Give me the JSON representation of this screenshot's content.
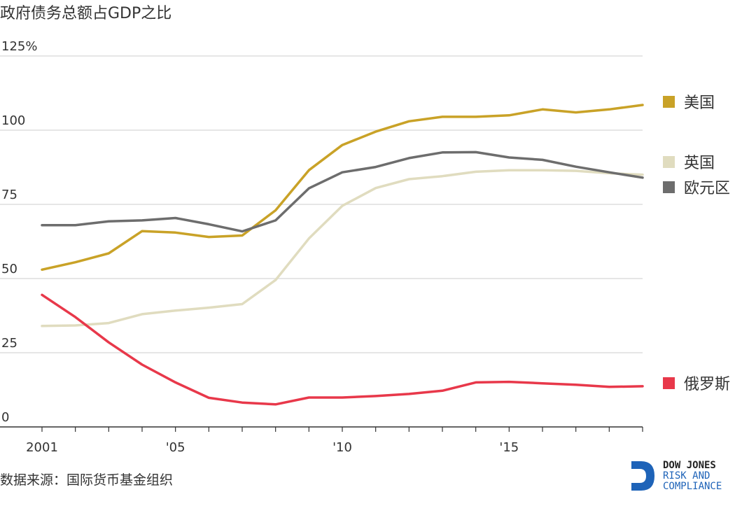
{
  "chart_data": {
    "type": "line",
    "title": "政府债务总额占GDP之比",
    "ylim": [
      0,
      125
    ],
    "y_ticks": [
      {
        "value": 125,
        "label": "125%"
      },
      {
        "value": 100,
        "label": "100"
      },
      {
        "value": 75,
        "label": "75"
      },
      {
        "value": 50,
        "label": "50"
      },
      {
        "value": 25,
        "label": "25"
      },
      {
        "value": 0,
        "label": "0"
      }
    ],
    "xlim": [
      2001,
      2019
    ],
    "x_ticks": [
      {
        "value": 2001,
        "label": "2001"
      },
      {
        "value": 2005,
        "label": "'05"
      },
      {
        "value": 2010,
        "label": "'10"
      },
      {
        "value": 2015,
        "label": "'15"
      }
    ],
    "x": [
      2001,
      2002,
      2003,
      2004,
      2005,
      2006,
      2007,
      2008,
      2009,
      2010,
      2011,
      2012,
      2013,
      2014,
      2015,
      2016,
      2017,
      2018,
      2019
    ],
    "series": [
      {
        "name": "美国",
        "color": "#c9a227",
        "values": [
          53,
          55.5,
          58.5,
          66,
          65.5,
          64,
          64.5,
          73,
          86.5,
          95,
          99.5,
          103,
          104.5,
          104.5,
          105,
          107,
          106,
          107,
          108.5
        ]
      },
      {
        "name": "英国",
        "color": "#e0dcbf",
        "values": [
          34,
          34.2,
          35,
          38,
          39.2,
          40.2,
          41.4,
          49.5,
          63.5,
          74.5,
          80.5,
          83.5,
          84.5,
          86,
          86.5,
          86.5,
          86.3,
          85.5,
          85
        ]
      },
      {
        "name": "欧元区",
        "color": "#6d6d6d",
        "values": [
          68,
          68,
          69.3,
          69.6,
          70.4,
          68.3,
          65.9,
          69.6,
          80.4,
          85.8,
          87.6,
          90.6,
          92.5,
          92.6,
          90.8,
          90,
          87.7,
          85.8,
          84
        ]
      },
      {
        "name": "俄罗斯",
        "color": "#e8384a",
        "values": [
          44.5,
          37,
          28.5,
          21,
          15,
          9.8,
          8.2,
          7.6,
          9.9,
          9.9,
          10.4,
          11.1,
          12.2,
          15,
          15.2,
          14.7,
          14.2,
          13.5,
          13.7
        ]
      }
    ],
    "legend": [
      {
        "name": "美国",
        "color": "#c9a227"
      },
      {
        "name": "英国",
        "color": "#e0dcbf"
      },
      {
        "name": "欧元区",
        "color": "#6d6d6d"
      },
      {
        "name": "俄罗斯",
        "color": "#e8384a"
      }
    ],
    "grid": true,
    "legend_placement": "right"
  },
  "footer": {
    "source": "数据来源：国际货币基金组织",
    "logo": {
      "line1": "DOW JONES",
      "line2": "RISK AND",
      "line3": "COMPLIANCE",
      "color": "#1e63b8"
    }
  }
}
